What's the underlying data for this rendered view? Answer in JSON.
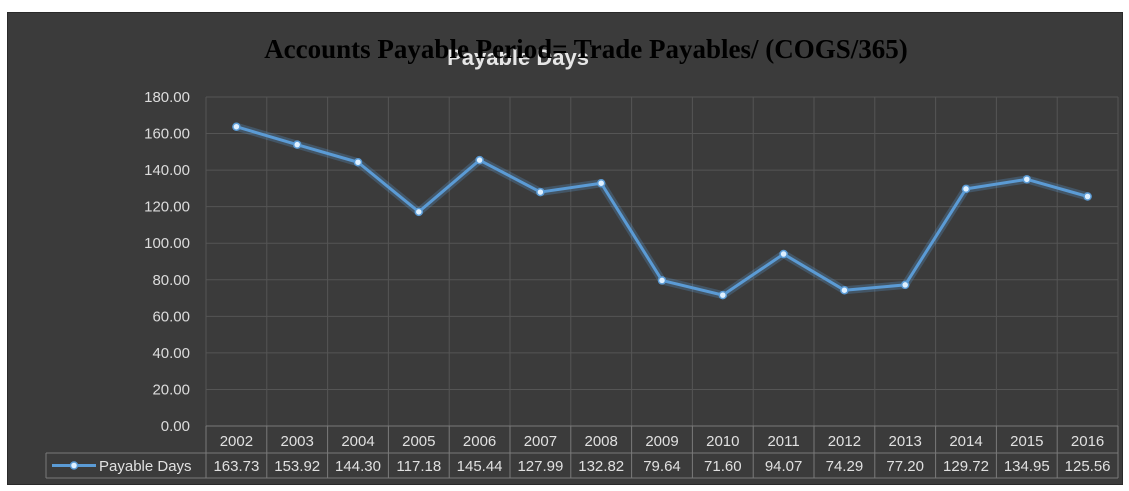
{
  "heading": "Accounts Payable Period= Trade Payables/ (COGS/365)",
  "colors": {
    "background": "#3b3b3b",
    "series": "#5b9bd5",
    "text": "#dcdcdc"
  },
  "chart_data": {
    "type": "line",
    "title": "Payable Days",
    "categories": [
      "2002",
      "2003",
      "2004",
      "2005",
      "2006",
      "2007",
      "2008",
      "2009",
      "2010",
      "2011",
      "2012",
      "2013",
      "2014",
      "2015",
      "2016"
    ],
    "series": [
      {
        "name": "Payable Days",
        "values": [
          163.73,
          153.92,
          144.3,
          117.18,
          145.44,
          127.99,
          132.82,
          79.64,
          71.6,
          94.07,
          74.29,
          77.2,
          129.72,
          134.95,
          125.56
        ],
        "labels": [
          "163.73",
          "153.92",
          "144.30",
          "117.18",
          "145.44",
          "127.99",
          "132.82",
          "79.64",
          "71.60",
          "94.07",
          "74.29",
          "77.20",
          "129.72",
          "134.95",
          "125.56"
        ]
      }
    ],
    "yticks": [
      "0.00",
      "20.00",
      "40.00",
      "60.00",
      "80.00",
      "100.00",
      "120.00",
      "140.00",
      "160.00",
      "180.00"
    ],
    "ylim": [
      0,
      180
    ],
    "grid": true,
    "legend": "data-table",
    "xlabel": "",
    "ylabel": ""
  }
}
